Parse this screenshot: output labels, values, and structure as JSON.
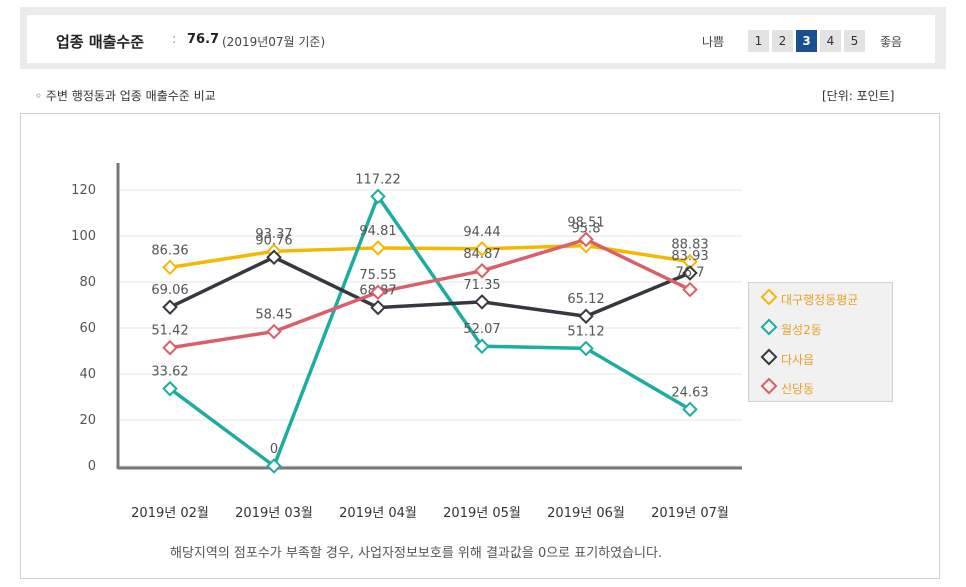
{
  "header": {
    "title": "업종 매출수준",
    "separator": ":",
    "value": "76.7",
    "note": "(2019년07월 기준)",
    "grade_bad": "나쁨",
    "grade_good": "좋음",
    "grades": [
      "1",
      "2",
      "3",
      "4",
      "5"
    ],
    "active_grade": "3"
  },
  "section": {
    "title": "◦ 주변 행정동과 업종 매출수준 비교",
    "unit": "[단위: 포인트]"
  },
  "footnote": "해당지역의 점포수가 부족할 경우, 사업자정보보호를 위해 결과값을 0으로 표기하였습니다.",
  "chart_data": {
    "type": "line",
    "categories": [
      "2019년 02월",
      "2019년 03월",
      "2019년 04월",
      "2019년 05월",
      "2019년 06월",
      "2019년 07월"
    ],
    "ylim": [
      0,
      120
    ],
    "yticks": [
      0,
      20,
      40,
      60,
      80,
      100,
      120
    ],
    "legend_position": "right",
    "series": [
      {
        "name": "대구행정동평균",
        "color": "#f5b800",
        "values": [
          86.36,
          93.37,
          94.81,
          94.44,
          95.8,
          88.83
        ],
        "labels": [
          "86.36",
          "93.37",
          "94.81",
          "94.44",
          "95.8",
          "88.83"
        ]
      },
      {
        "name": "월성2동",
        "color": "#1aada0",
        "values": [
          33.62,
          0,
          117.22,
          52.07,
          51.12,
          24.63
        ],
        "labels": [
          "33.62",
          "0",
          "117.22",
          "52.07",
          "51.12",
          "24.63"
        ]
      },
      {
        "name": "다사읍",
        "color": "#34393f",
        "values": [
          69.06,
          90.76,
          68.87,
          71.35,
          65.12,
          83.93
        ],
        "labels": [
          "69.06",
          "90.76",
          "68.87",
          "71.35",
          "65.12",
          "83.93"
        ]
      },
      {
        "name": "신당동",
        "color": "#d9606a",
        "values": [
          51.42,
          58.45,
          75.55,
          84.87,
          98.51,
          76.7
        ],
        "labels": [
          "51.42",
          "58.45",
          "75.55",
          "84.87",
          "98.51",
          "76.7"
        ]
      }
    ]
  }
}
